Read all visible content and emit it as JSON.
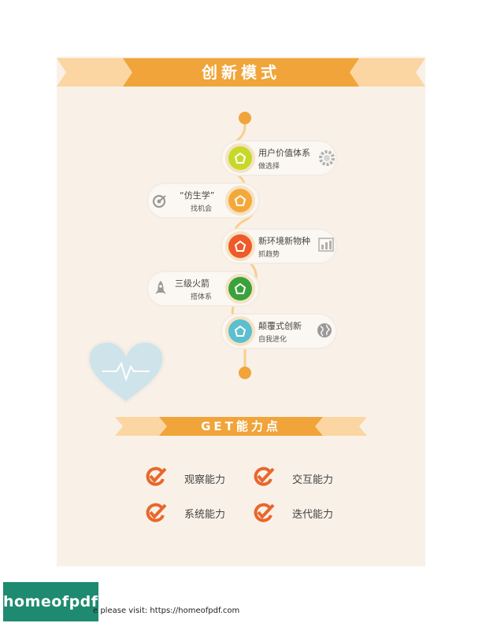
{
  "header": {
    "title": "创新模式"
  },
  "timeline": {
    "items": [
      {
        "title": "用户价值体系",
        "subtitle": "做选择",
        "side": "right",
        "color": "#c6d92a",
        "icon": "gear-icon"
      },
      {
        "title": "“仿生学”",
        "subtitle": "找机会",
        "side": "left",
        "color": "#f5a83a",
        "icon": "target-icon"
      },
      {
        "title": "新环境新物种",
        "subtitle": "抓趋势",
        "side": "right",
        "color": "#ee5a2a",
        "icon": "bar-chart-icon"
      },
      {
        "title": "三级火箭",
        "subtitle": "搭体系",
        "side": "left",
        "color": "#3aa23a",
        "icon": "rocket-icon"
      },
      {
        "title": "颠覆式创新",
        "subtitle": "自我进化",
        "side": "right",
        "color": "#5bbfcf",
        "icon": "globe-icon"
      }
    ]
  },
  "heart": {
    "icon": "heartbeat-heart-icon"
  },
  "section2": {
    "title": "GET能力点"
  },
  "skills": [
    "观察能力",
    "交互能力",
    "系统能力",
    "迭代能力"
  ],
  "footer": {
    "logo": "homeofpdf.com",
    "text": "e please visit: https://homeofpdf.com"
  },
  "colors": {
    "accent": "#f0a43a",
    "ribbon_light": "#fbd6a2",
    "card_bg": "#f9f1e8",
    "check": "#e8672c",
    "logo_bg": "#1e8a6f"
  }
}
